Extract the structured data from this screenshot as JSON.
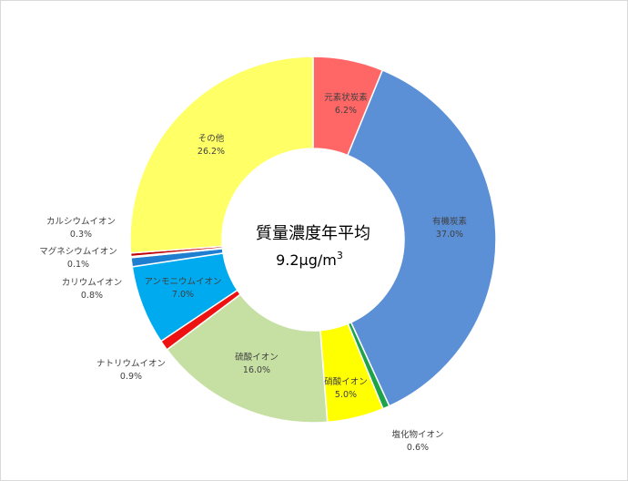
{
  "chart_data": {
    "type": "pie",
    "variant": "donut",
    "center_title": "質量濃度年平均",
    "center_value": "9.2μg/m",
    "center_value_sup": "3",
    "slices": [
      {
        "name": "元素状炭素",
        "value": 6.2,
        "value_label": "6.2%",
        "color": "#ff6666"
      },
      {
        "name": "有機炭素",
        "value": 37.0,
        "value_label": "37.0%",
        "color": "#5b8fd6"
      },
      {
        "name": "塩化物イオン",
        "value": 0.6,
        "value_label": "0.6%",
        "color": "#1ea34a"
      },
      {
        "name": "硝酸イオン",
        "value": 5.0,
        "value_label": "5.0%",
        "color": "#ffff00"
      },
      {
        "name": "硫酸イオン",
        "value": 16.0,
        "value_label": "16.0%",
        "color": "#c6e0a4"
      },
      {
        "name": "ナトリウムイオン",
        "value": 0.9,
        "value_label": "0.9%",
        "color": "#ee1111"
      },
      {
        "name": "アンモニウムイオン",
        "value": 7.0,
        "value_label": "7.0%",
        "color": "#00aaee"
      },
      {
        "name": "カリウムイオン",
        "value": 0.8,
        "value_label": "0.8%",
        "color": "#1e7fd0"
      },
      {
        "name": "マグネシウムイオン",
        "value": 0.1,
        "value_label": "0.1%",
        "color": "#7fb2e0"
      },
      {
        "name": "カルシウムイオン",
        "value": 0.3,
        "value_label": "0.3%",
        "color": "#c00000"
      },
      {
        "name": "その他",
        "value": 26.2,
        "value_label": "26.2%",
        "color": "#ffff66"
      }
    ]
  }
}
